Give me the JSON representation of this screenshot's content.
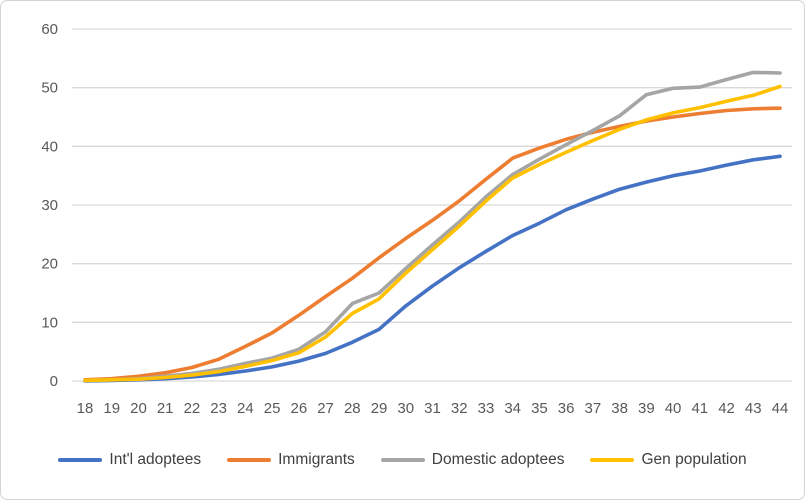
{
  "chart_data": {
    "type": "line",
    "x_label_values": [
      18,
      19,
      20,
      21,
      22,
      23,
      24,
      25,
      26,
      27,
      28,
      29,
      30,
      31,
      32,
      33,
      34,
      35,
      36,
      37,
      38,
      39,
      40,
      41,
      42,
      43,
      44
    ],
    "y_ticks": [
      0,
      10,
      20,
      30,
      40,
      50,
      60
    ],
    "ylim": [
      0,
      60
    ],
    "xlim": [
      18,
      44
    ],
    "grid": "horizontal",
    "legend_position": "bottom",
    "title": "",
    "xlabel": "",
    "ylabel": "",
    "series": [
      {
        "name": "Int'l adoptees",
        "color": "#4472C4",
        "values": [
          0,
          0.1,
          0.2,
          0.4,
          0.7,
          1.1,
          1.7,
          2.4,
          3.4,
          4.7,
          6.6,
          8.8,
          12.8,
          16.2,
          19.3,
          22.1,
          24.8,
          26.9,
          29.2,
          31,
          32.7,
          33.9,
          35,
          35.8,
          36.8,
          37.7,
          38.3
        ]
      },
      {
        "name": "Immigrants",
        "color": "#ED7D31",
        "values": [
          0.2,
          0.4,
          0.8,
          1.4,
          2.3,
          3.7,
          5.9,
          8.2,
          11.2,
          14.4,
          17.5,
          21,
          24.3,
          27.4,
          30.7,
          34.4,
          38,
          39.7,
          41.2,
          42.4,
          43.4,
          44.3,
          45,
          45.6,
          46.1,
          46.4,
          46.5
        ]
      },
      {
        "name": "Domestic adoptees",
        "color": "#A5A5A5",
        "values": [
          0.1,
          0.2,
          0.4,
          0.8,
          1.3,
          2,
          3,
          3.9,
          5.4,
          8.4,
          13.2,
          15,
          19.2,
          23.2,
          27.1,
          31.4,
          35.2,
          37.8,
          40.3,
          42.7,
          45.2,
          48.8,
          49.9,
          50.1,
          51.4,
          52.6,
          52.5
        ]
      },
      {
        "name": "Gen population",
        "color": "#FFC000",
        "values": [
          0.1,
          0.2,
          0.3,
          0.6,
          1,
          1.6,
          2.5,
          3.5,
          4.8,
          7.5,
          11.5,
          14,
          18.4,
          22.4,
          26.4,
          30.7,
          34.6,
          36.9,
          39,
          41,
          42.9,
          44.5,
          45.7,
          46.6,
          47.7,
          48.7,
          50.2
        ]
      }
    ],
    "gridline_color": "#D9D9D9",
    "axis_text_color": "#595959",
    "legend_text_color": "#404040"
  }
}
